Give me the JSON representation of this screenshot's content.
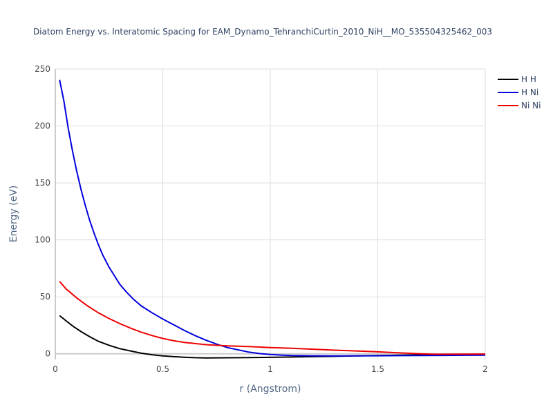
{
  "chart_data": {
    "type": "line",
    "title": "Diatom Energy vs. Interatomic Spacing for EAM_Dynamo_TehranchiCurtin_2010_NiH__MO_535504325462_003",
    "xlabel": "r (Angstrom)",
    "ylabel": "Energy (eV)",
    "xlim": [
      0,
      2
    ],
    "ylim": [
      -5,
      250
    ],
    "xticks": [
      0,
      0.5,
      1,
      1.5,
      2
    ],
    "xtick_labels": [
      "0",
      "0.5",
      "1",
      "1.5",
      "2"
    ],
    "yticks": [
      0,
      50,
      100,
      150,
      200,
      250
    ],
    "ytick_labels": [
      "0",
      "50",
      "100",
      "150",
      "200",
      "250"
    ],
    "grid": true,
    "legend_position": "top-right",
    "series": [
      {
        "name": "H H",
        "color": "#000000",
        "x": [
          0.02,
          0.05,
          0.08,
          0.12,
          0.16,
          0.2,
          0.25,
          0.3,
          0.35,
          0.4,
          0.45,
          0.5,
          0.55,
          0.6,
          0.65,
          0.7,
          0.8,
          0.9,
          1.0,
          1.1,
          1.2,
          1.3,
          1.4,
          1.5,
          1.6,
          1.7,
          1.8,
          1.9,
          2.0
        ],
        "y": [
          33.5,
          29,
          24.5,
          19.5,
          15,
          11,
          7.5,
          4.5,
          2.5,
          0.5,
          -0.8,
          -1.8,
          -2.5,
          -3,
          -3.4,
          -3.6,
          -3.5,
          -3.3,
          -3.1,
          -2.8,
          -2.5,
          -2.2,
          -1.8,
          -1.5,
          -1.2,
          -0.9,
          -0.7,
          -0.5,
          -0.4
        ]
      },
      {
        "name": "H Ni",
        "color": "#0000dd",
        "x": [
          0.02,
          0.04,
          0.06,
          0.08,
          0.1,
          0.12,
          0.14,
          0.16,
          0.18,
          0.2,
          0.22,
          0.25,
          0.28,
          0.3,
          0.33,
          0.36,
          0.4,
          0.45,
          0.5,
          0.55,
          0.6,
          0.65,
          0.7,
          0.75,
          0.8,
          0.85,
          0.9,
          0.95,
          1.0,
          1.05,
          1.1,
          1.2,
          1.3,
          1.4,
          1.5,
          1.6,
          1.7,
          1.8,
          1.9,
          2.0
        ],
        "y": [
          240.5,
          222,
          198,
          178,
          160,
          144,
          130,
          117,
          106,
          96,
          87,
          76,
          67,
          61,
          54.5,
          48.5,
          42,
          36,
          30.5,
          25.5,
          20.5,
          16,
          12,
          8.5,
          5.5,
          3.5,
          1.5,
          0.2,
          -0.6,
          -1.1,
          -1.5,
          -1.8,
          -1.9,
          -1.8,
          -1.7,
          -1.6,
          -1.5,
          -1.4,
          -1.3,
          -1.2
        ]
      },
      {
        "name": "Ni Ni",
        "color": "#ee0000",
        "x": [
          0.02,
          0.05,
          0.1,
          0.15,
          0.2,
          0.25,
          0.3,
          0.35,
          0.4,
          0.45,
          0.5,
          0.55,
          0.6,
          0.65,
          0.7,
          0.8,
          0.9,
          1.0,
          1.1,
          1.2,
          1.3,
          1.4,
          1.5,
          1.6,
          1.7,
          1.75,
          1.8,
          1.9,
          2.0
        ],
        "y": [
          63.5,
          57,
          49,
          42,
          36,
          31,
          26.5,
          22.5,
          19,
          16,
          13.5,
          11.5,
          10,
          9,
          8,
          7,
          6.3,
          5.5,
          4.8,
          4,
          3.2,
          2.5,
          1.7,
          0.8,
          0,
          -0.3,
          -0.4,
          -0.3,
          -0.2
        ]
      }
    ]
  }
}
